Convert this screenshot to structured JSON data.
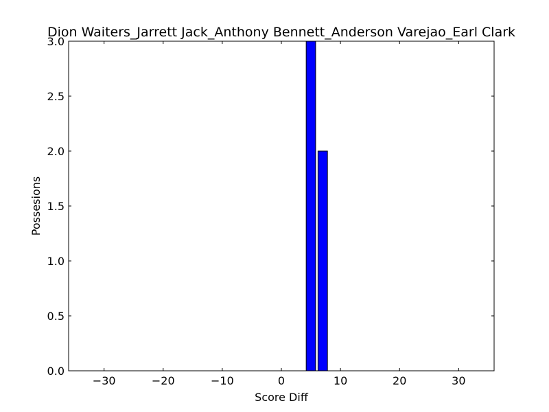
{
  "chart_data": {
    "type": "bar",
    "title": "Dion Waiters_Jarrett Jack_Anthony Bennett_Anderson Varejao_Earl Clark",
    "xlabel": "Score Diff",
    "ylabel": "Possesions",
    "xlim": [
      -36,
      36
    ],
    "ylim": [
      0,
      3
    ],
    "xticks": [
      -30,
      -20,
      -10,
      0,
      10,
      20,
      30
    ],
    "yticks": [
      0.0,
      0.5,
      1.0,
      1.5,
      2.0,
      2.5,
      3.0
    ],
    "xtick_labels": [
      "−30",
      "−20",
      "−10",
      "0",
      "10",
      "20",
      "30"
    ],
    "ytick_labels": [
      "0.0",
      "0.5",
      "1.0",
      "1.5",
      "2.0",
      "2.5",
      "3.0"
    ],
    "bar_width": 1.6,
    "bars": [
      {
        "x": 5,
        "value": 3
      },
      {
        "x": 7,
        "value": 2
      }
    ],
    "bar_color": "#0000ff",
    "edge_color": "#000000",
    "grid": false,
    "legend": "none"
  }
}
